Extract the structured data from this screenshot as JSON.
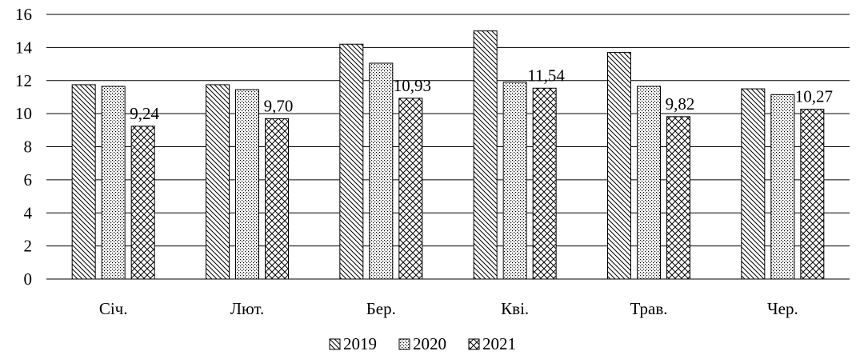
{
  "chart_data": {
    "type": "bar",
    "title": "",
    "xlabel": "",
    "ylabel": "",
    "categories": [
      "Січ.",
      "Лют.",
      "Бер.",
      "Кві.",
      "Трав.",
      "Чер."
    ],
    "ylim": [
      0,
      16
    ],
    "yticks": [
      "0",
      "2",
      "4",
      "6",
      "8",
      "10",
      "12",
      "14",
      "16"
    ],
    "grid": true,
    "legend_position": "bottom",
    "series": [
      {
        "name": "2019",
        "pattern": "diagonal-lines",
        "values": [
          11.75,
          11.75,
          14.2,
          15.0,
          13.7,
          11.5
        ],
        "labels": [
          "",
          "",
          "",
          "",
          "",
          ""
        ]
      },
      {
        "name": "2020",
        "pattern": "dots",
        "values": [
          11.65,
          11.45,
          13.05,
          11.9,
          11.65,
          11.15
        ],
        "labels": [
          "",
          "",
          "",
          "",
          "",
          ""
        ]
      },
      {
        "name": "2021",
        "pattern": "crosshatch",
        "values": [
          9.24,
          9.7,
          10.93,
          11.54,
          9.82,
          10.27
        ],
        "labels": [
          "9,24",
          "9,70",
          "10,93",
          "11,54",
          "9,82",
          "10,27"
        ]
      }
    ]
  }
}
